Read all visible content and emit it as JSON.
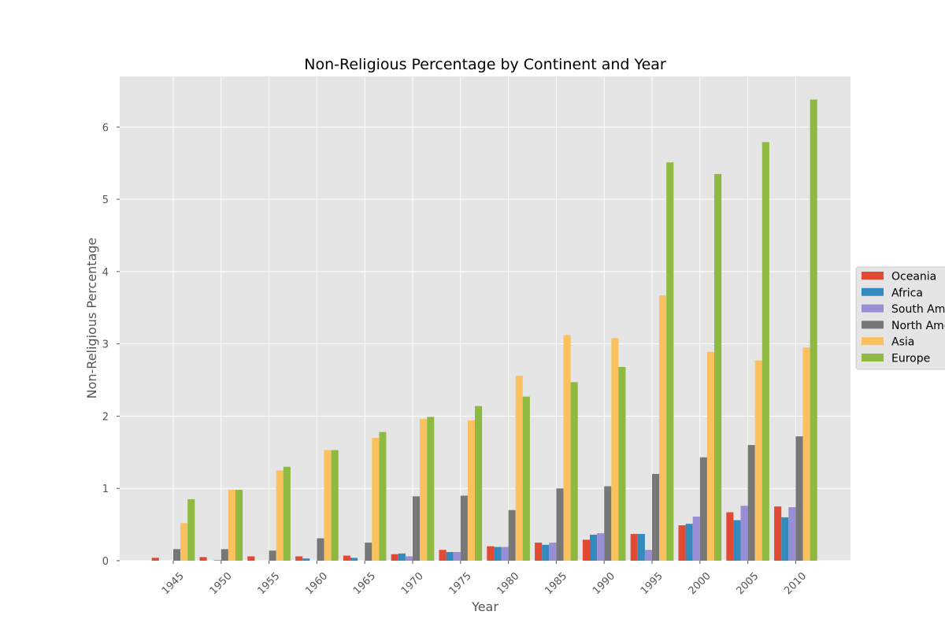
{
  "chart_data": {
    "type": "bar",
    "title": "Non-Religious Percentage by Continent and Year",
    "xlabel": "Year",
    "ylabel": "Non-Religious Percentage",
    "categories": [
      "1945",
      "1950",
      "1955",
      "1960",
      "1965",
      "1970",
      "1975",
      "1980",
      "1985",
      "1990",
      "1995",
      "2000",
      "2005",
      "2010"
    ],
    "ylim": [
      0,
      6.7
    ],
    "yticks": [
      0,
      1,
      2,
      3,
      4,
      5,
      6
    ],
    "grid": true,
    "legend_position": "right",
    "series": [
      {
        "name": "Oceania",
        "color": "#E24A33",
        "values": [
          0.04,
          0.05,
          0.06,
          0.06,
          0.07,
          0.09,
          0.15,
          0.2,
          0.25,
          0.29,
          0.37,
          0.49,
          0.67,
          0.75
        ]
      },
      {
        "name": "Africa",
        "color": "#348ABD",
        "values": [
          0,
          0,
          0,
          0.03,
          0.04,
          0.1,
          0.12,
          0.19,
          0.22,
          0.36,
          0.37,
          0.51,
          0.56,
          0.6
        ]
      },
      {
        "name": "South America",
        "color": "#988ED5",
        "values": [
          0,
          0.01,
          0,
          0,
          0,
          0.06,
          0.12,
          0.19,
          0.25,
          0.38,
          0.15,
          0.61,
          0.76,
          0.74
        ]
      },
      {
        "name": "North America",
        "color": "#777777",
        "values": [
          0.16,
          0.16,
          0.14,
          0.31,
          0.25,
          0.89,
          0.9,
          0.7,
          1.0,
          1.03,
          1.2,
          1.43,
          1.6,
          1.72
        ]
      },
      {
        "name": "Asia",
        "color": "#FBC15E",
        "values": [
          0.52,
          0.98,
          1.25,
          1.53,
          1.7,
          1.96,
          1.94,
          2.56,
          3.12,
          3.08,
          3.67,
          2.89,
          2.77,
          2.95
        ]
      },
      {
        "name": "Europe",
        "color": "#8EBA42",
        "values": [
          0.85,
          0.98,
          1.3,
          1.53,
          1.78,
          1.99,
          2.14,
          2.27,
          2.47,
          2.68,
          5.51,
          5.35,
          5.79,
          6.38
        ]
      }
    ]
  }
}
